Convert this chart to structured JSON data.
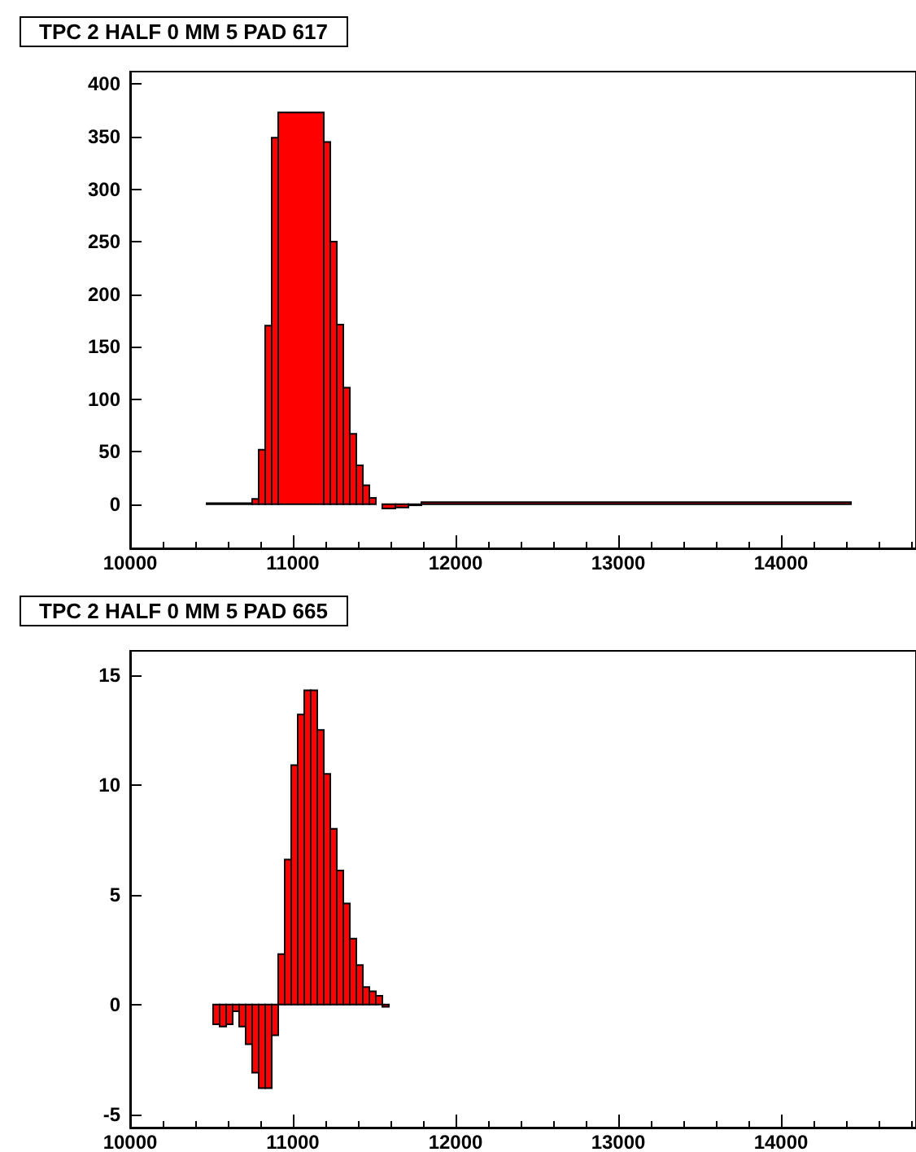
{
  "chart_data": [
    {
      "type": "histogram",
      "title": "TPC 2 HALF 0 MM 5 PAD 617",
      "color": "#ff0000",
      "bins": [
        10470,
        10750,
        10790,
        10830,
        10870,
        10910,
        11190,
        11230,
        11270,
        11310,
        11350,
        11390,
        11430,
        11470,
        11510,
        11550,
        11630,
        11710,
        11790,
        14430
      ],
      "values": [
        1,
        5,
        52,
        170,
        349,
        373,
        345,
        250,
        171,
        111,
        67,
        37,
        18,
        6,
        null,
        -4,
        -3,
        -1,
        2
      ],
      "xlim": [
        10000,
        14830
      ],
      "xticks": [
        10000,
        11000,
        12000,
        13000,
        14000
      ],
      "ylim": [
        -42,
        412
      ],
      "yticks": [
        0,
        50,
        100,
        150,
        200,
        250,
        300,
        350,
        400
      ],
      "grid": false
    },
    {
      "type": "histogram",
      "title": "TPC 2 HALF 0 MM 5 PAD 665",
      "color": "#ff0000",
      "bins": [
        10510,
        10550,
        10590,
        10630,
        10670,
        10710,
        10750,
        10790,
        10830,
        10870,
        10910,
        10950,
        10990,
        11030,
        11070,
        11110,
        11150,
        11190,
        11230,
        11270,
        11310,
        11350,
        11390,
        11430,
        11470,
        11510,
        11550,
        11590
      ],
      "values": [
        -0.9,
        -1.0,
        -0.9,
        -0.3,
        -1.0,
        -1.8,
        -3.1,
        -3.8,
        -3.8,
        -1.4,
        2.3,
        6.6,
        10.9,
        13.2,
        14.3,
        14.3,
        12.5,
        10.5,
        8.0,
        6.1,
        4.6,
        3.0,
        1.8,
        0.8,
        0.6,
        0.4,
        -0.1
      ],
      "xlim": [
        10000,
        14830
      ],
      "xticks": [
        10000,
        11000,
        12000,
        13000,
        14000
      ],
      "ylim": [
        -5.6,
        16.1
      ],
      "yticks": [
        -5,
        0,
        5,
        10,
        15
      ],
      "grid": false
    }
  ]
}
